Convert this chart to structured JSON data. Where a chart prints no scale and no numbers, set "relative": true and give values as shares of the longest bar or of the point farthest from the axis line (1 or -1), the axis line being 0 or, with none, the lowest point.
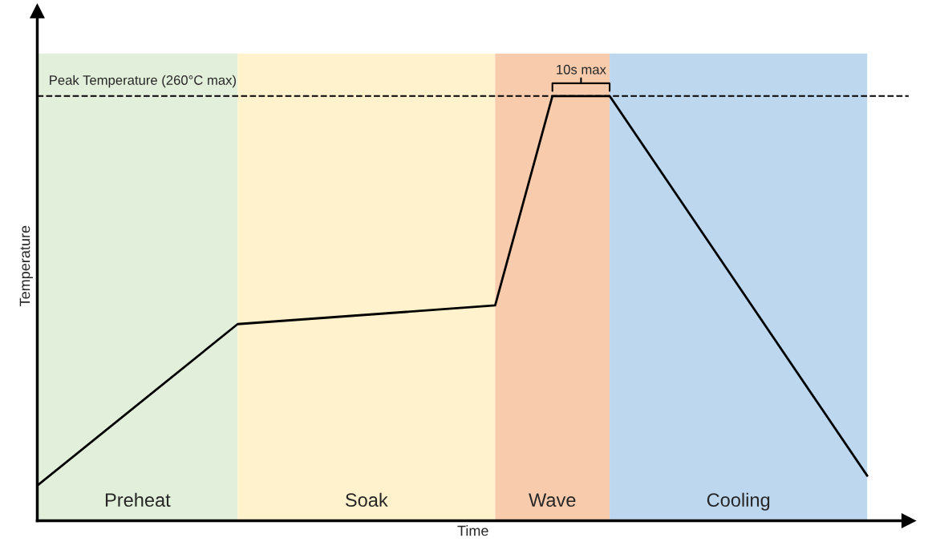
{
  "chart_data": {
    "type": "line",
    "relative": true,
    "xlabel": "Time",
    "ylabel": "Temperature",
    "tick_labels": false,
    "marker": "none",
    "line_style": "solid",
    "categories": [
      null,
      null,
      null,
      null,
      null,
      null,
      null,
      null,
      null,
      null,
      null,
      null,
      null,
      null,
      null,
      null,
      null,
      null,
      null,
      null,
      null,
      null,
      null,
      null,
      null,
      null,
      null,
      null,
      null,
      null
    ],
    "series": [
      {
        "color": "#000000",
        "values": [
          0.083,
          null,
          null,
          null,
          null,
          null,
          null,
          0.463,
          null,
          null,
          null,
          null,
          null,
          null,
          null,
          null,
          0.507,
          null,
          1,
          null,
          1,
          null,
          null,
          null,
          null,
          null,
          null,
          null,
          null,
          0.106
        ]
      }
    ],
    "ref_lines": [
      {
        "axis": "y",
        "value": 1,
        "label": "Peak Temperature (260°C max)",
        "color": "#000000",
        "line_style": "dashed"
      }
    ],
    "annotations": [
      "Preheat",
      "Soak",
      "Wave",
      "Cooling",
      "10s max"
    ]
  }
}
